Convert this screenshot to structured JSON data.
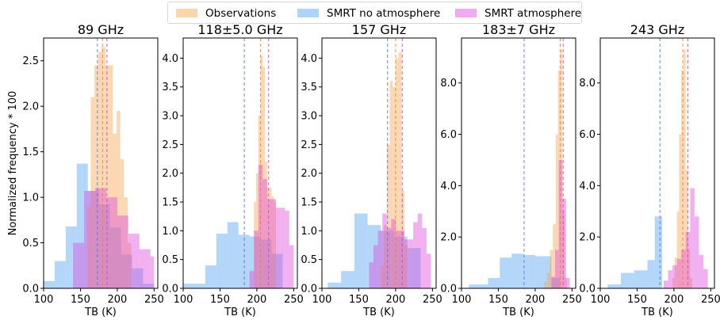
{
  "colors": {
    "observations": "#f5a24b",
    "no_atm": "#4d9ff0",
    "atm": "#dd44dd"
  },
  "legend": {
    "items": [
      {
        "label": "Observations",
        "color": "#f5a24b"
      },
      {
        "label": "SMRT no atmosphere",
        "color": "#4d9ff0"
      },
      {
        "label": "SMRT atmosphere",
        "color": "#dd44dd"
      }
    ]
  },
  "chart_data": [
    {
      "type": "bar",
      "title": "89 GHz",
      "xlabel": "TB (K)",
      "ylabel": "Normalized frequency * 100",
      "xlim": [
        100,
        255
      ],
      "ylim": [
        0,
        2.75
      ],
      "xticks": [
        "100",
        "150",
        "200",
        "250"
      ],
      "xtick_values": [
        100,
        150,
        200,
        250
      ],
      "yticks": [
        "0.0",
        "0.5",
        "1.0",
        "1.5",
        "2.0",
        "2.5"
      ],
      "ytick_values": [
        0,
        0.5,
        1.0,
        1.5,
        2.0,
        2.5
      ],
      "series": [
        {
          "name": "SMRT no atmosphere",
          "edges": [
            100,
            115,
            130,
            145,
            160,
            175,
            190,
            205,
            220,
            235,
            250
          ],
          "values": [
            0.08,
            0.3,
            0.68,
            1.37,
            1.07,
            0.92,
            0.67,
            0.37,
            0.22,
            0.05
          ],
          "vline": 173
        },
        {
          "name": "Observations",
          "edges": [
            159,
            164,
            169,
            174,
            179,
            184,
            189,
            194,
            199,
            204,
            209,
            214,
            219
          ],
          "values": [
            0.9,
            2.1,
            2.45,
            2.6,
            2.65,
            2.45,
            2.45,
            1.7,
            1.95,
            1.42,
            1.0,
            0.5
          ],
          "vline": 180
        },
        {
          "name": "SMRT atmosphere",
          "edges": [
            140,
            155,
            170,
            185,
            200,
            215,
            230,
            245,
            250
          ],
          "values": [
            0.5,
            1.07,
            1.1,
            1.0,
            0.8,
            0.6,
            0.43,
            0.35
          ],
          "vline": 186
        }
      ]
    },
    {
      "type": "bar",
      "title": "118±5.0 GHz",
      "xlabel": "TB (K)",
      "ylabel": "",
      "xlim": [
        100,
        255
      ],
      "ylim": [
        0,
        4.35
      ],
      "xticks": [
        "100",
        "150",
        "200",
        "250"
      ],
      "xtick_values": [
        100,
        150,
        200,
        250
      ],
      "yticks": [
        "0.0",
        "0.5",
        "1.0",
        "1.5",
        "2.0",
        "2.5",
        "3.0",
        "3.5",
        "4.0"
      ],
      "ytick_values": [
        0,
        0.5,
        1.0,
        1.5,
        2.0,
        2.5,
        3.0,
        3.5,
        4.0
      ],
      "series": [
        {
          "name": "SMRT no atmosphere",
          "edges": [
            100,
            115,
            130,
            145,
            160,
            175,
            190,
            205,
            220,
            235
          ],
          "values": [
            0.08,
            0.08,
            0.4,
            0.95,
            1.15,
            0.93,
            0.9,
            0.85,
            0.6
          ],
          "vline": 183
        },
        {
          "name": "Observations",
          "edges": [
            196,
            199,
            202,
            205,
            208,
            211,
            214,
            217,
            220,
            223,
            226
          ],
          "values": [
            1.5,
            2.0,
            3.0,
            4.05,
            3.85,
            2.2,
            1.75,
            1.75,
            1.6,
            1.5
          ],
          "vline": 205
        },
        {
          "name": "SMRT atmosphere",
          "edges": [
            190,
            196,
            202,
            208,
            214,
            220,
            226,
            232,
            238,
            244,
            250
          ],
          "values": [
            0.3,
            1.0,
            2.15,
            1.9,
            1.55,
            1.55,
            1.4,
            1.4,
            1.35,
            0.75
          ],
          "vline": 216
        }
      ]
    },
    {
      "type": "bar",
      "title": "157 GHz",
      "xlabel": "TB (K)",
      "ylabel": "",
      "xlim": [
        100,
        255
      ],
      "ylim": [
        0,
        4.35
      ],
      "xticks": [
        "100",
        "150",
        "200",
        "250"
      ],
      "xtick_values": [
        100,
        150,
        200,
        250
      ],
      "yticks": [
        "0.0",
        "0.5",
        "1.0",
        "1.5",
        "2.0",
        "2.5",
        "3.0",
        "3.5",
        "4.0"
      ],
      "ytick_values": [
        0,
        0.5,
        1.0,
        1.5,
        2.0,
        2.5,
        3.0,
        3.5,
        4.0
      ],
      "series": [
        {
          "name": "SMRT no atmosphere",
          "edges": [
            108,
            126,
            144,
            162,
            180,
            198,
            216,
            234
          ],
          "values": [
            0.1,
            0.3,
            1.3,
            1.1,
            1.0,
            0.9,
            0.7
          ],
          "vline": 189
        },
        {
          "name": "Observations",
          "edges": [
            180,
            184,
            188,
            192,
            196,
            200,
            204,
            208,
            212,
            216
          ],
          "values": [
            0.4,
            1.1,
            2.5,
            3.6,
            3.5,
            4.0,
            4.1,
            1.7,
            0.75
          ],
          "vline": 200
        },
        {
          "name": "SMRT atmosphere",
          "edges": [
            164,
            170,
            176,
            182,
            188,
            194,
            200,
            206,
            212,
            218,
            224,
            230,
            236,
            242,
            248
          ],
          "values": [
            0.45,
            0.75,
            1.0,
            1.3,
            1.05,
            1.2,
            1.0,
            1.0,
            0.85,
            0.85,
            1.15,
            1.3,
            1.05,
            0.6
          ],
          "vline": 209
        }
      ]
    },
    {
      "type": "bar",
      "title": "183±7 GHz",
      "xlabel": "TB (K)",
      "ylabel": "",
      "xlim": [
        100,
        255
      ],
      "ylim": [
        0,
        9.75
      ],
      "xticks": [
        "100",
        "150",
        "200",
        "250"
      ],
      "xtick_values": [
        100,
        150,
        200,
        250
      ],
      "yticks": [
        "0.0",
        "2.0",
        "4.0",
        "6.0",
        "8.0"
      ],
      "ytick_values": [
        0,
        2,
        4,
        6,
        8
      ],
      "series": [
        {
          "name": "SMRT no atmosphere",
          "edges": [
            110,
            136,
            152,
            168,
            184,
            200,
            222,
            234
          ],
          "values": [
            0.15,
            0.4,
            1.2,
            1.35,
            1.3,
            1.25,
            0.4
          ],
          "vline": 185
        },
        {
          "name": "Observations",
          "edges": [
            212,
            216,
            220,
            224,
            228,
            231,
            234,
            237,
            240,
            243
          ],
          "values": [
            0.25,
            0.6,
            1.5,
            2.5,
            6.0,
            8.5,
            9.3,
            3.0,
            0.4
          ],
          "vline": 234
        },
        {
          "name": "SMRT atmosphere",
          "edges": [
            222,
            227,
            232,
            237,
            242,
            247
          ],
          "values": [
            0.45,
            1.5,
            5.0,
            3.5,
            0.4
          ],
          "vline": 238
        }
      ]
    },
    {
      "type": "bar",
      "title": "243 GHz",
      "xlabel": "TB (K)",
      "ylabel": "",
      "xlim": [
        100,
        255
      ],
      "ylim": [
        0,
        9.75
      ],
      "xticks": [
        "100",
        "150",
        "200",
        "250"
      ],
      "xtick_values": [
        100,
        150,
        200,
        250
      ],
      "yticks": [
        "0.0",
        "2.0",
        "4.0",
        "6.0",
        "8.0"
      ],
      "ytick_values": [
        0,
        2,
        4,
        6,
        8
      ],
      "series": [
        {
          "name": "SMRT no atmosphere",
          "edges": [
            110,
            128,
            146,
            164,
            174,
            184
          ],
          "values": [
            0.15,
            0.6,
            0.7,
            1.1,
            2.8
          ],
          "vline": 181
        },
        {
          "name": "Observations",
          "edges": [
            198,
            201,
            204,
            207,
            210,
            213,
            216,
            219,
            222,
            225
          ],
          "values": [
            0.4,
            1.2,
            3.0,
            6.0,
            8.5,
            9.3,
            4.6,
            1.5,
            0.4
          ],
          "vline": 212
        },
        {
          "name": "SMRT atmosphere",
          "edges": [
            186,
            192,
            198,
            204,
            210,
            216,
            222,
            228,
            234,
            240,
            246
          ],
          "values": [
            0.3,
            0.7,
            0.9,
            1.15,
            1.5,
            2.2,
            3.9,
            2.8,
            1.3,
            0.75,
            0.6
          ],
          "vline": 219
        }
      ]
    }
  ]
}
